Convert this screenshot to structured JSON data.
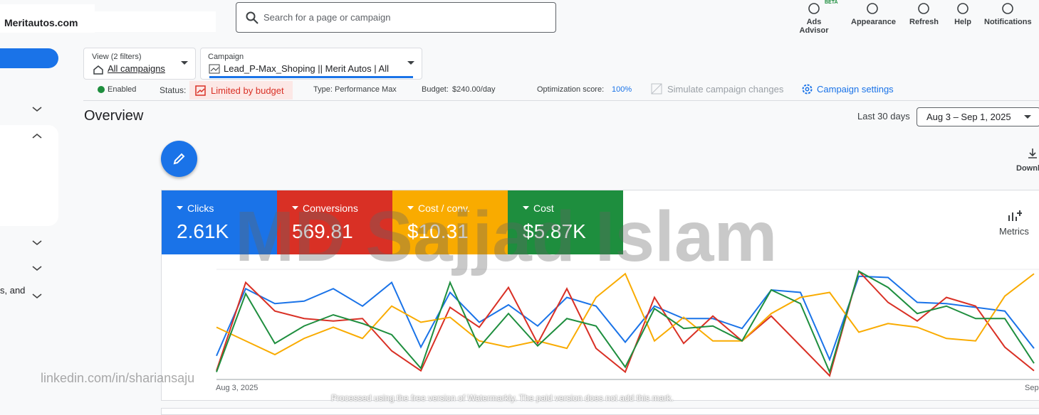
{
  "header": {
    "site": "Meritautos.com",
    "search_placeholder": "Search for a page or campaign",
    "beta": "BETA",
    "tools": [
      "Ads Advisor",
      "Appearance",
      "Refresh",
      "Help",
      "Notifications"
    ]
  },
  "filters": {
    "view_label": "View (2 filters)",
    "view_value": "All campaigns",
    "campaign_label": "Campaign",
    "campaign_value": "Lead_P-Max_Shoping || Merit Autos | All"
  },
  "status_bar": {
    "enabled": "Enabled",
    "status_label": "Status:",
    "status_value": "Limited by budget",
    "type_label": "Type:",
    "type_value": "Performance Max",
    "budget_label": "Budget:",
    "budget_value": "$240.00/day",
    "optimization_label": "Optimization score:",
    "optimization_value": "100%",
    "simulate": "Simulate campaign changes",
    "settings": "Campaign settings"
  },
  "overview": {
    "title": "Overview",
    "range_label": "Last 30 days",
    "range": "Aug 3 – Sep 1, 2025",
    "download": "Downl",
    "metrics": "Metrics"
  },
  "sidebar": {
    "partial_text": "s, and"
  },
  "watermarks": {
    "main": "MD Sajjad Islam",
    "linkedin": "linkedin.com/in/shariansaju",
    "footer": "Processed using the free version of Watermarkly. The paid version does not add this mark."
  },
  "chart_data": {
    "type": "line",
    "ylim": [
      0,
      100
    ],
    "categories": [
      "Aug 3, 2025",
      null,
      null,
      null,
      null,
      null,
      null,
      null,
      null,
      null,
      null,
      null,
      null,
      null,
      null,
      null,
      null,
      null,
      null,
      null,
      null,
      null,
      null,
      null,
      null,
      null,
      null,
      null,
      "Sep"
    ],
    "series": [
      {
        "name": "Clicks",
        "total": "2.61K",
        "color": "#1a73e8",
        "values": [
          19,
          73,
          61,
          63,
          73,
          59,
          78,
          26,
          70,
          46,
          60,
          43,
          66,
          59,
          30,
          59,
          49,
          49,
          41,
          72,
          70,
          16,
          83,
          82,
          62,
          61,
          58,
          55,
          25
        ]
      },
      {
        "name": "Conversions",
        "total": "569.81",
        "color": "#d93025",
        "values": [
          7,
          78,
          55,
          49,
          47,
          49,
          23,
          7,
          58,
          42,
          74,
          29,
          73,
          25,
          6,
          66,
          29,
          51,
          31,
          51,
          27,
          3,
          87,
          62,
          47,
          66,
          59,
          26,
          7
        ]
      },
      {
        "name": "Cost / conv.",
        "total": "$10.31",
        "color": "#f9ab00",
        "values": [
          42,
          31,
          20,
          33,
          42,
          33,
          59,
          46,
          50,
          31,
          26,
          31,
          25,
          66,
          85,
          31,
          50,
          31,
          31,
          53,
          66,
          70,
          38,
          45,
          42,
          33,
          31,
          67,
          85
        ]
      },
      {
        "name": "Cost",
        "total": "$5.87K",
        "color": "#1e8e3e",
        "values": [
          6,
          69,
          29,
          43,
          52,
          45,
          36,
          9,
          78,
          26,
          53,
          27,
          49,
          43,
          10,
          57,
          41,
          43,
          31,
          72,
          61,
          6,
          87,
          74,
          53,
          59,
          49,
          49,
          13
        ]
      }
    ]
  }
}
